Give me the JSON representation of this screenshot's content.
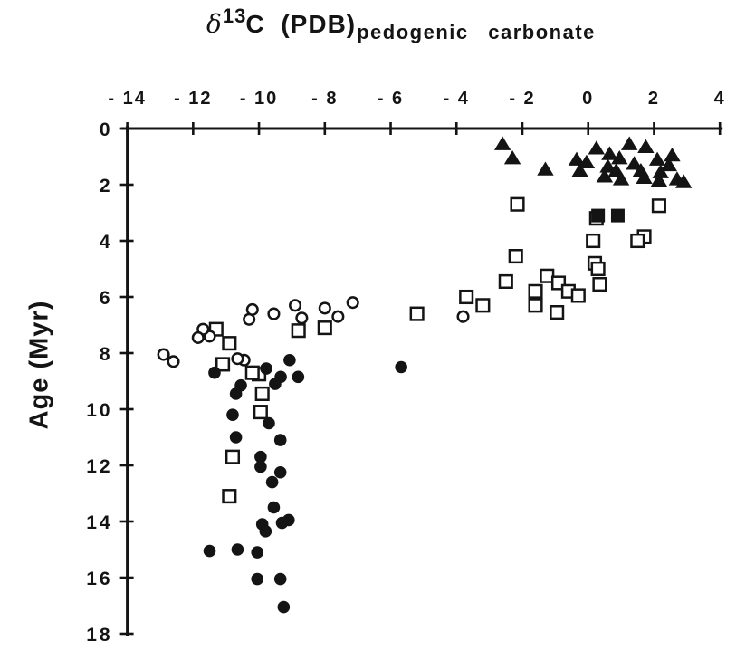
{
  "figure": {
    "title": {
      "delta": "δ",
      "superscript": "13",
      "main": "C (PDB)",
      "subscript": "pedogenic carbonate"
    },
    "y_axis_label": "Age (Myr)",
    "colors": {
      "ink": "#141414",
      "background": "#ffffff"
    }
  },
  "chart_data": {
    "type": "scatter",
    "title": "δ13C (PDB) pedogenic carbonate",
    "xlabel": "δ13C (PDB) pedogenic carbonate",
    "ylabel": "Age (Myr)",
    "xlim": [
      -14,
      4
    ],
    "ylim": [
      0,
      18
    ],
    "x_axis_position": "top",
    "y_axis_inverted": true,
    "grid": false,
    "legend_position": "none",
    "x_ticks": [
      -14,
      -12,
      -10,
      -8,
      -6,
      -4,
      -2,
      0,
      2,
      4
    ],
    "x_tick_labels": [
      "- 14",
      "- 12",
      "- 10",
      "- 8",
      "- 6",
      "- 4",
      "- 2",
      "0",
      "2",
      "4"
    ],
    "y_ticks": [
      0,
      2,
      4,
      6,
      8,
      10,
      12,
      14,
      16,
      18
    ],
    "y_tick_labels": [
      "0",
      "2",
      "4",
      "6",
      "8",
      "10",
      "12",
      "14",
      "16",
      "18"
    ],
    "series": [
      {
        "name": "open squares",
        "marker": "square-open",
        "points": [
          [
            -2.15,
            2.7
          ],
          [
            2.15,
            2.75
          ],
          [
            0.25,
            3.2
          ],
          [
            1.7,
            3.85
          ],
          [
            0.15,
            4.0
          ],
          [
            1.5,
            4.0
          ],
          [
            -2.2,
            4.55
          ],
          [
            0.2,
            4.8
          ],
          [
            0.3,
            5.0
          ],
          [
            -2.5,
            5.45
          ],
          [
            -1.25,
            5.25
          ],
          [
            -0.9,
            5.5
          ],
          [
            0.35,
            5.55
          ],
          [
            -1.6,
            5.8
          ],
          [
            -0.6,
            5.8
          ],
          [
            -0.3,
            5.95
          ],
          [
            -3.7,
            6.0
          ],
          [
            -1.6,
            6.3
          ],
          [
            -3.2,
            6.3
          ],
          [
            -0.95,
            6.55
          ],
          [
            -5.2,
            6.6
          ],
          [
            -8.0,
            7.1
          ],
          [
            -8.8,
            7.2
          ],
          [
            -11.3,
            7.15
          ],
          [
            -10.9,
            7.65
          ],
          [
            -11.1,
            8.4
          ],
          [
            -10.0,
            8.75
          ],
          [
            -10.2,
            8.7
          ],
          [
            -9.9,
            9.45
          ],
          [
            -9.95,
            10.1
          ],
          [
            -10.8,
            11.7
          ],
          [
            -10.9,
            13.1
          ]
        ]
      },
      {
        "name": "open circles",
        "marker": "circle-open",
        "points": [
          [
            -10.3,
            6.8
          ],
          [
            -10.2,
            6.45
          ],
          [
            -9.55,
            6.6
          ],
          [
            -8.9,
            6.3
          ],
          [
            -8.7,
            6.75
          ],
          [
            -8.0,
            6.4
          ],
          [
            -7.6,
            6.7
          ],
          [
            -7.15,
            6.2
          ],
          [
            -3.8,
            6.7
          ],
          [
            -11.5,
            7.4
          ],
          [
            -11.7,
            7.15
          ],
          [
            -11.85,
            7.45
          ],
          [
            -12.6,
            8.3
          ],
          [
            -12.9,
            8.05
          ],
          [
            -10.45,
            8.25
          ],
          [
            -10.65,
            8.2
          ]
        ]
      },
      {
        "name": "filled circles",
        "marker": "circle-filled",
        "points": [
          [
            -11.35,
            8.7
          ],
          [
            -5.68,
            8.5
          ],
          [
            -9.78,
            8.55
          ],
          [
            -9.07,
            8.25
          ],
          [
            -9.34,
            8.85
          ],
          [
            -8.81,
            8.85
          ],
          [
            -9.51,
            9.1
          ],
          [
            -10.55,
            9.15
          ],
          [
            -10.7,
            9.45
          ],
          [
            -10.8,
            10.2
          ],
          [
            -9.7,
            10.5
          ],
          [
            -10.7,
            11.0
          ],
          [
            -9.35,
            11.1
          ],
          [
            -9.95,
            12.05
          ],
          [
            -9.95,
            11.7
          ],
          [
            -9.35,
            12.25
          ],
          [
            -9.6,
            12.6
          ],
          [
            -9.55,
            13.5
          ],
          [
            -9.9,
            14.1
          ],
          [
            -9.1,
            13.95
          ],
          [
            -9.3,
            14.05
          ],
          [
            -9.8,
            14.35
          ],
          [
            -11.5,
            15.05
          ],
          [
            -10.65,
            15.0
          ],
          [
            -10.05,
            15.1
          ],
          [
            -10.05,
            16.05
          ],
          [
            -9.35,
            16.05
          ],
          [
            -9.25,
            17.05
          ]
        ]
      },
      {
        "name": "filled squares",
        "marker": "square-filled",
        "points": [
          [
            0.3,
            3.1
          ],
          [
            0.9,
            3.1
          ]
        ]
      },
      {
        "name": "filled triangles",
        "marker": "triangle-filled",
        "points": [
          [
            -2.6,
            0.55
          ],
          [
            -2.3,
            1.05
          ],
          [
            -1.3,
            1.45
          ],
          [
            -0.35,
            1.1
          ],
          [
            -0.05,
            1.2
          ],
          [
            -0.25,
            1.5
          ],
          [
            0.25,
            0.7
          ],
          [
            0.65,
            0.9
          ],
          [
            0.6,
            1.35
          ],
          [
            0.85,
            1.5
          ],
          [
            0.95,
            1.05
          ],
          [
            1.25,
            0.55
          ],
          [
            1.4,
            1.25
          ],
          [
            1.6,
            1.5
          ],
          [
            1.75,
            0.65
          ],
          [
            2.1,
            1.1
          ],
          [
            2.2,
            1.55
          ],
          [
            2.45,
            1.3
          ],
          [
            2.55,
            0.95
          ],
          [
            0.5,
            1.7
          ],
          [
            1.0,
            1.8
          ],
          [
            1.7,
            1.75
          ],
          [
            2.15,
            1.85
          ],
          [
            2.7,
            1.8
          ],
          [
            2.9,
            1.9
          ]
        ]
      }
    ]
  }
}
